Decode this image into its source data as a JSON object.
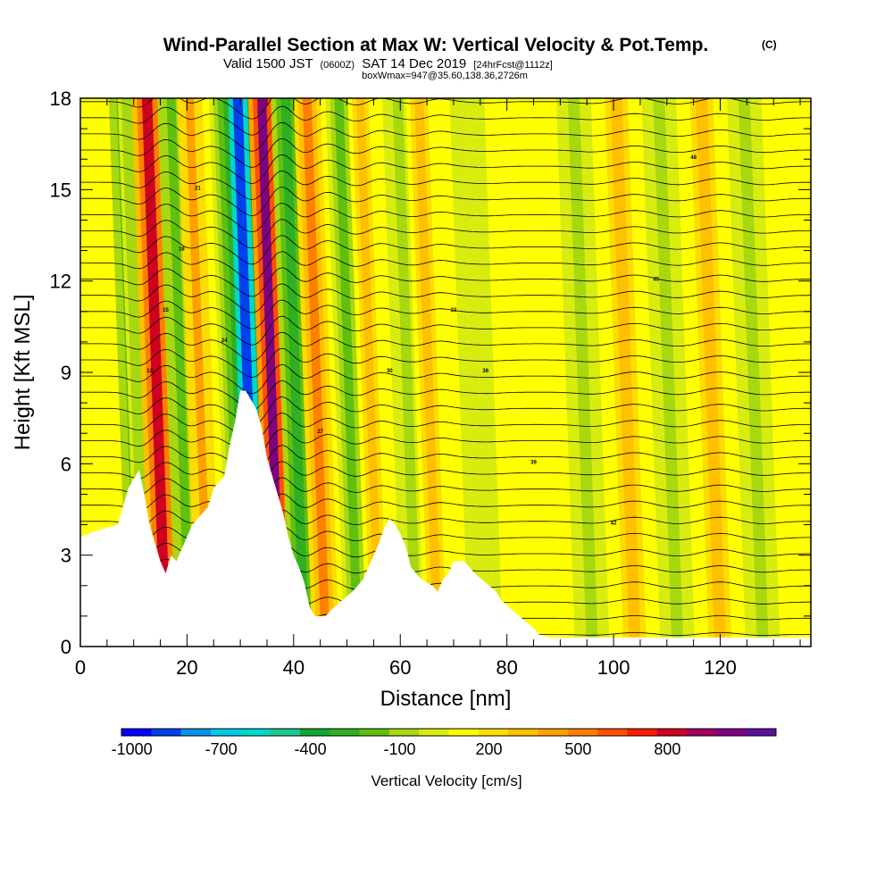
{
  "title": {
    "main": "Wind-Parallel Section at Max W: Vertical Velocity & Pot.Temp.",
    "copyright": "(C)",
    "valid_prefix": "Valid 1500 JST",
    "valid_utc": "(0600Z)",
    "valid_date": "SAT 14 Dec 2019",
    "forecast": "[24hrFcst@1112z]",
    "boxline": "boxWmax=947@35.60,138.36,2726m"
  },
  "chart_data": {
    "type": "heatmap",
    "xlabel": "Distance [nm]",
    "ylabel": "Height [Kft MSL]",
    "xlim": [
      0,
      137
    ],
    "ylim": [
      0,
      18
    ],
    "x_ticks": [
      "0",
      "20",
      "40",
      "60",
      "80",
      "100",
      "120"
    ],
    "y_ticks": [
      "0",
      "3",
      "6",
      "9",
      "12",
      "15",
      "18"
    ],
    "colorbar": {
      "title": "Vertical Velocity [cm/s]",
      "tick_labels": [
        "-1000",
        "-700",
        "-400",
        "-100",
        "200",
        "500",
        "800"
      ],
      "colors": [
        "#0000ff",
        "#0040f0",
        "#0a90e8",
        "#00c8e8",
        "#00d8c8",
        "#20c890",
        "#10a830",
        "#30b020",
        "#60c010",
        "#a8d810",
        "#d8ec10",
        "#ffff00",
        "#ffdc00",
        "#ffc000",
        "#ffa000",
        "#ff8000",
        "#ff5000",
        "#ff1a00",
        "#d00020",
        "#a00060",
        "#800080",
        "#5a10a0"
      ]
    },
    "terrain": [
      [
        0,
        3.6
      ],
      [
        3,
        3.8
      ],
      [
        7,
        4.0
      ],
      [
        9,
        5.2
      ],
      [
        11,
        5.8
      ],
      [
        12,
        5.0
      ],
      [
        13,
        4.0
      ],
      [
        14,
        3.4
      ],
      [
        15,
        2.8
      ],
      [
        16,
        2.4
      ],
      [
        17,
        3.0
      ],
      [
        18,
        2.8
      ],
      [
        19,
        3.2
      ],
      [
        20,
        3.6
      ],
      [
        21,
        4.0
      ],
      [
        22,
        4.2
      ],
      [
        24,
        4.6
      ],
      [
        25,
        5.2
      ],
      [
        27,
        5.6
      ],
      [
        28,
        6.6
      ],
      [
        29,
        7.4
      ],
      [
        30,
        8.4
      ],
      [
        31,
        8.4
      ],
      [
        32,
        8.1
      ],
      [
        33,
        7.8
      ],
      [
        34,
        7.2
      ],
      [
        35,
        6.2
      ],
      [
        36,
        5.6
      ],
      [
        37,
        5.0
      ],
      [
        38,
        4.4
      ],
      [
        39,
        3.6
      ],
      [
        40,
        3.0
      ],
      [
        41,
        2.6
      ],
      [
        42,
        2.1
      ],
      [
        43,
        1.3
      ],
      [
        44,
        1.0
      ],
      [
        46,
        1.0
      ],
      [
        47,
        1.2
      ],
      [
        49,
        1.5
      ],
      [
        51,
        1.8
      ],
      [
        53,
        2.2
      ],
      [
        54,
        2.6
      ],
      [
        55,
        3.0
      ],
      [
        56,
        3.4
      ],
      [
        57,
        3.9
      ],
      [
        58,
        4.2
      ],
      [
        59,
        4.0
      ],
      [
        60,
        3.7
      ],
      [
        61,
        3.3
      ],
      [
        62,
        2.6
      ],
      [
        64,
        2.2
      ],
      [
        66,
        2.0
      ],
      [
        67,
        1.8
      ],
      [
        68,
        2.2
      ],
      [
        69,
        2.4
      ],
      [
        70,
        2.8
      ],
      [
        72,
        2.8
      ],
      [
        74,
        2.4
      ],
      [
        76,
        2.1
      ],
      [
        78,
        1.8
      ],
      [
        79,
        1.5
      ],
      [
        81,
        1.2
      ],
      [
        83,
        0.9
      ],
      [
        85,
        0.6
      ],
      [
        86,
        0.4
      ],
      [
        88,
        0.3
      ],
      [
        137,
        0.3
      ]
    ],
    "vertical_velocity_bands": [
      {
        "center_x": 11,
        "width": 1.2,
        "w": -300
      },
      {
        "center_x": 12.5,
        "width": 1.1,
        "w": -200
      },
      {
        "center_x": 16,
        "width": 1.6,
        "w": 700
      },
      {
        "center_x": 20.5,
        "width": 1.4,
        "w": -300
      },
      {
        "center_x": 24,
        "width": 1.3,
        "w": 300
      },
      {
        "center_x": 30,
        "width": 1.3,
        "w": -250
      },
      {
        "center_x": 33,
        "width": 1.5,
        "w": -1000
      },
      {
        "center_x": 37.5,
        "width": 1.4,
        "w": 900
      },
      {
        "center_x": 42,
        "width": 1.5,
        "w": -350
      },
      {
        "center_x": 46,
        "width": 1.4,
        "w": 450
      },
      {
        "center_x": 52,
        "width": 1.4,
        "w": -250
      },
      {
        "center_x": 56,
        "width": 1.3,
        "w": 250
      },
      {
        "center_x": 63,
        "width": 1.6,
        "w": -150
      },
      {
        "center_x": 67,
        "width": 1.4,
        "w": 200
      },
      {
        "center_x": 76,
        "width": 1.8,
        "w": -80
      },
      {
        "center_x": 96,
        "width": 1.8,
        "w": -120
      },
      {
        "center_x": 104,
        "width": 1.8,
        "w": 250
      },
      {
        "center_x": 112,
        "width": 1.8,
        "w": -150
      },
      {
        "center_x": 120,
        "width": 1.8,
        "w": 250
      },
      {
        "center_x": 128,
        "width": 1.8,
        "w": -150
      }
    ],
    "isentrope_labels": [
      "12",
      "15",
      "18",
      "21",
      "24",
      "27",
      "30",
      "33",
      "36",
      "39",
      "42",
      "45",
      "48"
    ]
  }
}
